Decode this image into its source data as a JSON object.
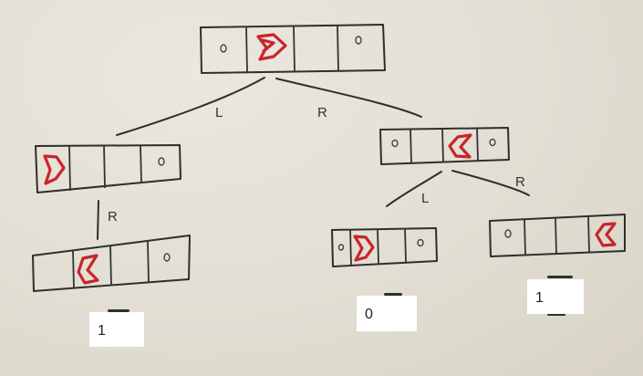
{
  "edge_labels": {
    "root_left": "L",
    "root_right": "R",
    "left_down": "R",
    "right_left": "L",
    "right_right": "R"
  },
  "cell_marks": {
    "food": "o"
  },
  "answers": {
    "leaf_left": "1",
    "leaf_middle": "0",
    "leaf_right": "1"
  },
  "colors": {
    "pacman": "#c8252b",
    "ink": "#2e2e2e",
    "paper": "#e4e0d6"
  }
}
